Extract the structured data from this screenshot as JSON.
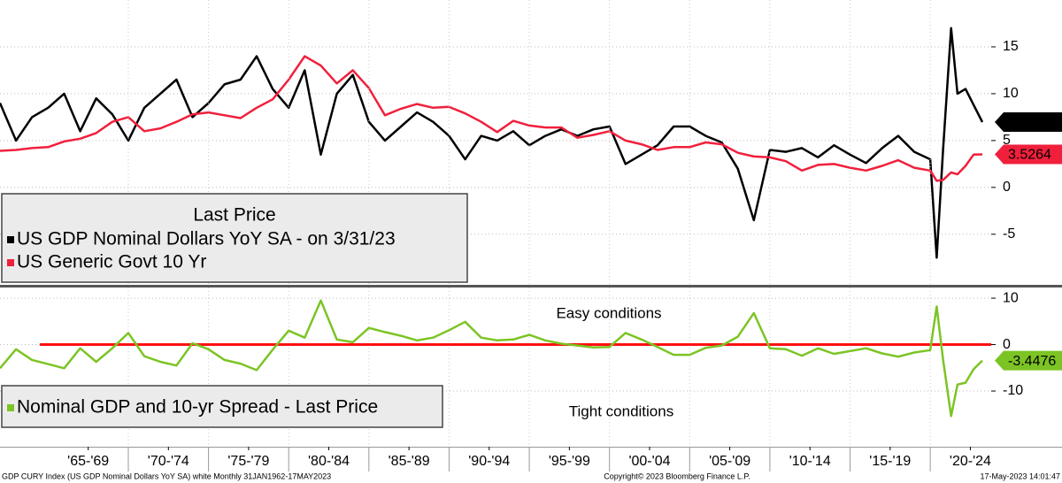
{
  "chart_data": [
    {
      "type": "line",
      "legend_title": "Last Price",
      "x": [
        1962,
        1963,
        1964,
        1965,
        1966,
        1967,
        1968,
        1969,
        1970,
        1971,
        1972,
        1973,
        1974,
        1975,
        1976,
        1977,
        1978,
        1979,
        1980,
        1981,
        1982,
        1983,
        1984,
        1985,
        1986,
        1987,
        1988,
        1989,
        1990,
        1991,
        1992,
        1993,
        1994,
        1995,
        1996,
        1997,
        1998,
        1999,
        2000,
        2001,
        2002,
        2003,
        2004,
        2005,
        2006,
        2007,
        2008,
        2009,
        2010,
        2011,
        2012,
        2013,
        2014,
        2015,
        2016,
        2017,
        2018,
        2019,
        2020.0,
        2020.4,
        2020.8,
        2021.3,
        2021.7,
        2022.2,
        2022.7,
        2023.25
      ],
      "series": [
        {
          "name": "US GDP Nominal Dollars YoY SA -  on 3/31/23",
          "color": "#000000",
          "values": [
            9,
            5,
            7.5,
            8.5,
            10,
            6,
            9.5,
            7.8,
            5,
            8.5,
            10,
            11.5,
            7.5,
            9,
            11,
            11.5,
            14,
            10.5,
            8.5,
            12.5,
            3.5,
            10,
            12,
            7,
            5,
            6.5,
            8,
            7,
            5.5,
            3,
            5.5,
            5,
            6,
            4.5,
            5.5,
            6.2,
            5.5,
            6.2,
            6.5,
            2.5,
            3.5,
            4.5,
            6.5,
            6.5,
            5.5,
            4.8,
            2,
            -3.5,
            4,
            3.8,
            4.2,
            3.2,
            4.5,
            3.5,
            2.6,
            4.2,
            5.5,
            3.8,
            3,
            -7.5,
            4,
            17,
            10,
            10.5,
            8.8,
            6.9739
          ]
        },
        {
          "name": "US Generic Govt 10 Yr",
          "color": "#f0203c",
          "values": [
            3.9,
            4.0,
            4.2,
            4.3,
            4.9,
            5.2,
            5.8,
            7.0,
            7.5,
            6.0,
            6.3,
            7.0,
            7.8,
            8.0,
            7.7,
            7.4,
            8.5,
            9.4,
            11.5,
            14,
            13,
            11.1,
            12.5,
            10.6,
            7.7,
            8.4,
            8.9,
            8.5,
            8.6,
            7.9,
            7.0,
            5.9,
            7.1,
            6.6,
            6.4,
            6.4,
            5.3,
            5.6,
            6.0,
            5.0,
            4.6,
            4.0,
            4.3,
            4.3,
            4.8,
            4.6,
            3.7,
            3.3,
            3.2,
            2.8,
            1.8,
            2.4,
            2.5,
            2.1,
            1.8,
            2.3,
            2.9,
            2.1,
            1.8,
            0.7,
            0.8,
            1.6,
            1.4,
            2.3,
            3.5,
            3.5264
          ]
        }
      ],
      "xlim": [
        1962,
        2023.8
      ],
      "ylim": [
        -10.4,
        20
      ],
      "yticks": [
        15,
        10,
        5,
        0,
        -5
      ],
      "grid": true
    },
    {
      "type": "line",
      "x": [
        1962,
        1963,
        1964,
        1965,
        1966,
        1967,
        1968,
        1969,
        1970,
        1971,
        1972,
        1973,
        1974,
        1975,
        1976,
        1977,
        1978,
        1979,
        1980,
        1981,
        1982,
        1983,
        1984,
        1985,
        1986,
        1987,
        1988,
        1989,
        1990,
        1991,
        1992,
        1993,
        1994,
        1995,
        1996,
        1997,
        1998,
        1999,
        2000,
        2001,
        2002,
        2003,
        2004,
        2005,
        2006,
        2007,
        2008,
        2009,
        2010,
        2011,
        2012,
        2013,
        2014,
        2015,
        2016,
        2017,
        2018,
        2019,
        2020.0,
        2020.4,
        2020.8,
        2021.3,
        2021.7,
        2022.2,
        2022.7,
        2023.25
      ],
      "series": [
        {
          "name": "Nominal GDP and 10-yr Spread - Last Price",
          "color": "#7cc424",
          "values": [
            -5.1,
            -1.0,
            -3.3,
            -4.2,
            -5.1,
            -0.8,
            -3.7,
            -0.8,
            2.5,
            -2.5,
            -3.7,
            -4.5,
            0.3,
            -1.0,
            -3.3,
            -4.1,
            -5.5,
            -1.1,
            3.0,
            1.5,
            9.5,
            1.1,
            0.5,
            3.6,
            2.7,
            1.9,
            0.9,
            1.5,
            3.1,
            4.9,
            1.5,
            0.9,
            1.1,
            2.1,
            0.9,
            0.2,
            -0.2,
            -0.6,
            -0.5,
            2.5,
            1.1,
            -0.5,
            -2.2,
            -2.2,
            -0.7,
            -0.2,
            1.7,
            6.8,
            -0.8,
            -1.0,
            -2.4,
            -0.8,
            -2.0,
            -1.4,
            -0.8,
            -1.9,
            -2.6,
            -1.7,
            -1.2,
            8.2,
            -3.2,
            -15.4,
            -8.6,
            -8.2,
            -5.3,
            -3.4476
          ]
        }
      ],
      "hline": 0,
      "hline_color": "#ff1010",
      "annotations": [
        "Easy conditions",
        "Tight conditions"
      ],
      "xlim": [
        1962,
        2023.8
      ],
      "ylim": [
        -22,
        12.3
      ],
      "yticks": [
        10,
        0,
        -10
      ],
      "xticks": [
        {
          "value": 1967.5,
          "label": "'65-'69"
        },
        {
          "value": 1972.5,
          "label": "'70-'74"
        },
        {
          "value": 1977.5,
          "label": "'75-'79"
        },
        {
          "value": 1982.5,
          "label": "'80-'84"
        },
        {
          "value": 1987.5,
          "label": "'85-'89"
        },
        {
          "value": 1992.5,
          "label": "'90-'94"
        },
        {
          "value": 1997.5,
          "label": "'95-'99"
        },
        {
          "value": 2002.5,
          "label": "'00-'04"
        },
        {
          "value": 2007.5,
          "label": "'05-'09"
        },
        {
          "value": 2012.5,
          "label": "'10-'14"
        },
        {
          "value": 2017.5,
          "label": "'15-'19"
        },
        {
          "value": 2022.5,
          "label": "'20-'24"
        }
      ],
      "grid": true
    }
  ],
  "footer": {
    "left": "GDP CURY Index (US GDP Nominal Dollars YoY SA) white  Monthly 31JAN1962-17MAY2023",
    "center": "Copyright© 2023 Bloomberg Finance L.P.",
    "right": "17-May-2023 14:01:47"
  }
}
